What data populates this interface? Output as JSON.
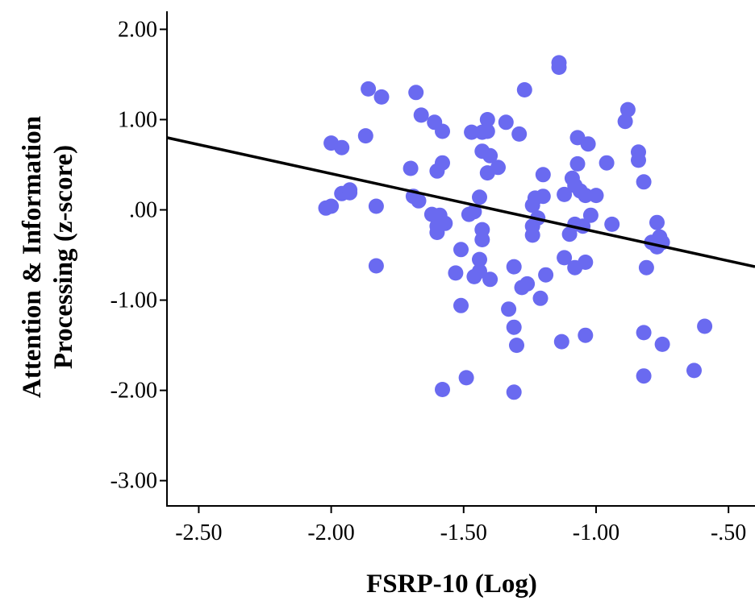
{
  "chart_data": {
    "type": "scatter",
    "title": "",
    "xlabel": "FSRP-10 (Log)",
    "ylabel_lines": [
      "Attention & Information",
      "Processing (z-score)"
    ],
    "xlim": [
      -2.62,
      -0.4
    ],
    "ylim": [
      -3.28,
      2.2
    ],
    "x_ticks": [
      {
        "value": -2.5,
        "label": "-2.50"
      },
      {
        "value": -2.0,
        "label": "-2.00"
      },
      {
        "value": -1.5,
        "label": "-1.50"
      },
      {
        "value": -1.0,
        "label": "-1.00"
      },
      {
        "value": -0.5,
        "label": "-.50"
      }
    ],
    "y_ticks": [
      {
        "value": 2.0,
        "label": "2.00"
      },
      {
        "value": 1.0,
        "label": "1.00"
      },
      {
        "value": 0.0,
        "label": ".00"
      },
      {
        "value": -1.0,
        "label": "-1.00"
      },
      {
        "value": -2.0,
        "label": "-2.00"
      },
      {
        "value": -3.0,
        "label": "-3.00"
      }
    ],
    "grid": false,
    "point_color": "#6a6af0",
    "line_color": "#000000",
    "fit_line": {
      "x": [
        -2.62,
        -0.4
      ],
      "y": [
        0.8,
        -0.63
      ]
    },
    "points": [
      {
        "x": -2.02,
        "y": 0.02
      },
      {
        "x": -2.0,
        "y": 0.04
      },
      {
        "x": -2.0,
        "y": 0.74
      },
      {
        "x": -1.96,
        "y": 0.69
      },
      {
        "x": -1.96,
        "y": 0.18
      },
      {
        "x": -1.93,
        "y": 0.19
      },
      {
        "x": -1.93,
        "y": 0.22
      },
      {
        "x": -1.87,
        "y": 0.82
      },
      {
        "x": -1.86,
        "y": 1.34
      },
      {
        "x": -1.83,
        "y": 0.04
      },
      {
        "x": -1.83,
        "y": -0.62
      },
      {
        "x": -1.81,
        "y": 1.25
      },
      {
        "x": -1.7,
        "y": 0.46
      },
      {
        "x": -1.69,
        "y": 0.15
      },
      {
        "x": -1.68,
        "y": 1.3
      },
      {
        "x": -1.67,
        "y": 0.1
      },
      {
        "x": -1.66,
        "y": 1.05
      },
      {
        "x": -1.62,
        "y": -0.05
      },
      {
        "x": -1.61,
        "y": 0.97
      },
      {
        "x": -1.6,
        "y": -0.25
      },
      {
        "x": -1.6,
        "y": -0.18
      },
      {
        "x": -1.6,
        "y": 0.43
      },
      {
        "x": -1.59,
        "y": -0.06
      },
      {
        "x": -1.58,
        "y": 0.87
      },
      {
        "x": -1.58,
        "y": 0.52
      },
      {
        "x": -1.57,
        "y": -0.15
      },
      {
        "x": -1.58,
        "y": -1.99
      },
      {
        "x": -1.53,
        "y": -0.7
      },
      {
        "x": -1.51,
        "y": -0.44
      },
      {
        "x": -1.51,
        "y": -1.06
      },
      {
        "x": -1.49,
        "y": -1.86
      },
      {
        "x": -1.48,
        "y": -0.05
      },
      {
        "x": -1.47,
        "y": 0.86
      },
      {
        "x": -1.46,
        "y": -0.74
      },
      {
        "x": -1.46,
        "y": -0.02
      },
      {
        "x": -1.44,
        "y": 0.14
      },
      {
        "x": -1.44,
        "y": -0.55
      },
      {
        "x": -1.44,
        "y": -0.68
      },
      {
        "x": -1.43,
        "y": -0.33
      },
      {
        "x": -1.43,
        "y": -0.22
      },
      {
        "x": -1.43,
        "y": 0.86
      },
      {
        "x": -1.43,
        "y": 0.65
      },
      {
        "x": -1.41,
        "y": 0.41
      },
      {
        "x": -1.41,
        "y": 1.0
      },
      {
        "x": -1.41,
        "y": 0.87
      },
      {
        "x": -1.4,
        "y": 0.6
      },
      {
        "x": -1.4,
        "y": -0.77
      },
      {
        "x": -1.37,
        "y": 0.47
      },
      {
        "x": -1.34,
        "y": 0.97
      },
      {
        "x": -1.33,
        "y": -1.1
      },
      {
        "x": -1.31,
        "y": -1.3
      },
      {
        "x": -1.31,
        "y": -0.63
      },
      {
        "x": -1.31,
        "y": -2.02
      },
      {
        "x": -1.3,
        "y": -1.5
      },
      {
        "x": -1.29,
        "y": 0.84
      },
      {
        "x": -1.28,
        "y": -0.86
      },
      {
        "x": -1.27,
        "y": 1.33
      },
      {
        "x": -1.26,
        "y": -0.82
      },
      {
        "x": -1.24,
        "y": 0.05
      },
      {
        "x": -1.24,
        "y": -0.18
      },
      {
        "x": -1.24,
        "y": -0.28
      },
      {
        "x": -1.23,
        "y": 0.13
      },
      {
        "x": -1.22,
        "y": -0.09
      },
      {
        "x": -1.21,
        "y": -0.98
      },
      {
        "x": -1.2,
        "y": 0.15
      },
      {
        "x": -1.2,
        "y": 0.39
      },
      {
        "x": -1.19,
        "y": -0.72
      },
      {
        "x": -1.14,
        "y": 1.63
      },
      {
        "x": -1.14,
        "y": 1.58
      },
      {
        "x": -1.13,
        "y": -1.46
      },
      {
        "x": -1.12,
        "y": 0.17
      },
      {
        "x": -1.12,
        "y": -0.53
      },
      {
        "x": -1.1,
        "y": -0.27
      },
      {
        "x": -1.09,
        "y": 0.35
      },
      {
        "x": -1.08,
        "y": 0.27
      },
      {
        "x": -1.08,
        "y": -0.64
      },
      {
        "x": -1.08,
        "y": -0.16
      },
      {
        "x": -1.07,
        "y": 0.8
      },
      {
        "x": -1.07,
        "y": 0.51
      },
      {
        "x": -1.06,
        "y": 0.21
      },
      {
        "x": -1.05,
        "y": -0.18
      },
      {
        "x": -1.04,
        "y": 0.16
      },
      {
        "x": -1.04,
        "y": -1.39
      },
      {
        "x": -1.04,
        "y": -0.58
      },
      {
        "x": -1.03,
        "y": 0.73
      },
      {
        "x": -1.02,
        "y": -0.06
      },
      {
        "x": -1.0,
        "y": 0.16
      },
      {
        "x": -0.96,
        "y": 0.52
      },
      {
        "x": -0.94,
        "y": -0.16
      },
      {
        "x": -0.89,
        "y": 0.98
      },
      {
        "x": -0.88,
        "y": 1.11
      },
      {
        "x": -0.84,
        "y": 0.64
      },
      {
        "x": -0.84,
        "y": 0.55
      },
      {
        "x": -0.82,
        "y": 0.31
      },
      {
        "x": -0.82,
        "y": -1.36
      },
      {
        "x": -0.82,
        "y": -1.84
      },
      {
        "x": -0.81,
        "y": -0.64
      },
      {
        "x": -0.79,
        "y": -0.36
      },
      {
        "x": -0.77,
        "y": -0.14
      },
      {
        "x": -0.77,
        "y": -0.41
      },
      {
        "x": -0.76,
        "y": -0.3
      },
      {
        "x": -0.75,
        "y": -0.36
      },
      {
        "x": -0.75,
        "y": -1.49
      },
      {
        "x": -0.63,
        "y": -1.78
      },
      {
        "x": -0.59,
        "y": -1.29
      }
    ]
  }
}
